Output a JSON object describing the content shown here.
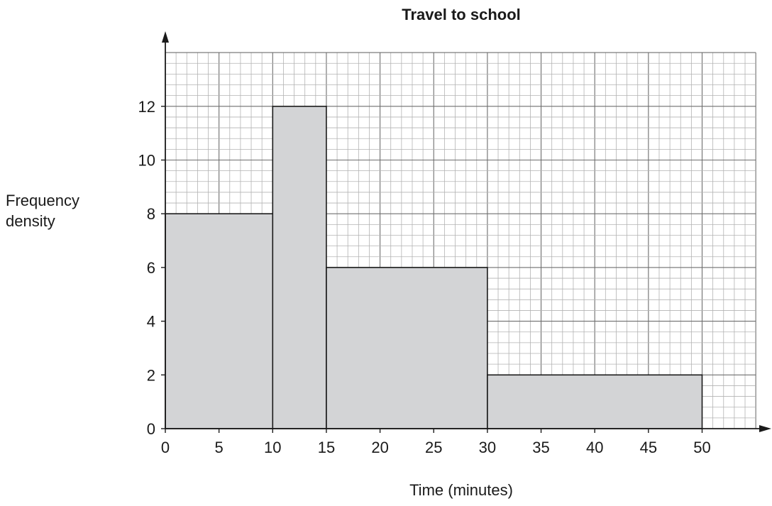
{
  "chart_data": {
    "type": "bar",
    "subtype": "histogram",
    "title": "Travel to school",
    "xlabel": "Time (minutes)",
    "ylabel_lines": [
      "Frequency",
      "density"
    ],
    "bins": [
      {
        "from": 0,
        "to": 10,
        "value": 8
      },
      {
        "from": 10,
        "to": 15,
        "value": 12
      },
      {
        "from": 15,
        "to": 30,
        "value": 6
      },
      {
        "from": 30,
        "to": 50,
        "value": 2
      }
    ],
    "xlim": [
      0,
      55
    ],
    "ylim": [
      0,
      14
    ],
    "xticks": [
      0,
      5,
      10,
      15,
      20,
      25,
      30,
      35,
      40,
      45,
      50
    ],
    "yticks": [
      0,
      2,
      4,
      6,
      8,
      10,
      12
    ],
    "grid": true,
    "colors": {
      "bar_fill": "#d3d4d6",
      "grid_minor": "#b3b3b3",
      "grid_major": "#6e6e6e",
      "axis": "#1a1a1a"
    }
  }
}
